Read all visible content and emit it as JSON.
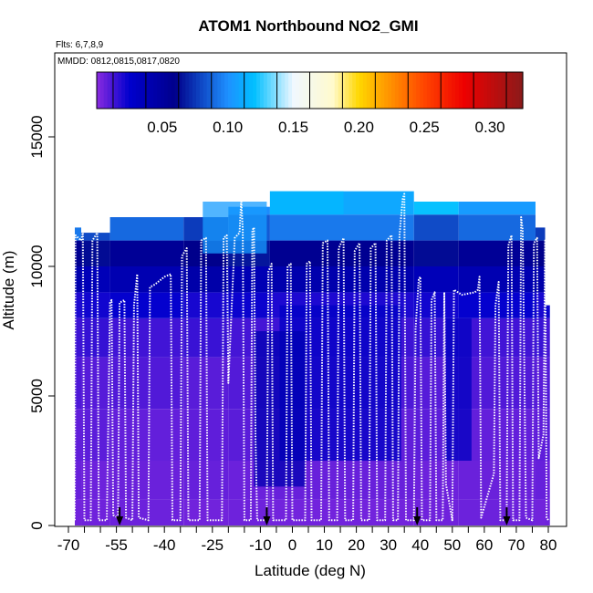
{
  "chart_data": {
    "type": "heatmap",
    "title": "ATOM1 Northbound NO2_GMI",
    "xlabel": "Latitude (deg N)",
    "ylabel": "Altitude (m)",
    "xlim": [
      -70,
      82
    ],
    "ylim": [
      0,
      17500
    ],
    "x_ticks": [
      {
        "value": -70,
        "label": "-70"
      },
      {
        "value": -55,
        "label": "-55"
      },
      {
        "value": -40,
        "label": "-40"
      },
      {
        "value": -25,
        "label": "-25"
      },
      {
        "value": -10,
        "label": "-10"
      },
      {
        "value": 0,
        "label": "0"
      },
      {
        "value": 10,
        "label": "10"
      },
      {
        "value": 20,
        "label": "20"
      },
      {
        "value": 30,
        "label": "30"
      },
      {
        "value": 40,
        "label": "40"
      },
      {
        "value": 50,
        "label": "50"
      },
      {
        "value": 60,
        "label": "60"
      },
      {
        "value": 70,
        "label": "70"
      },
      {
        "value": 80,
        "label": "80"
      }
    ],
    "x_minor_ticks": [
      -65,
      -60,
      -50,
      -45,
      -35,
      -30,
      -20,
      -15,
      -5,
      5,
      15,
      25,
      35,
      45,
      55,
      65,
      75
    ],
    "y_ticks": [
      {
        "value": 0,
        "label": "0"
      },
      {
        "value": 5000,
        "label": "5000"
      },
      {
        "value": 10000,
        "label": "10000"
      },
      {
        "value": 15000,
        "label": "15000"
      }
    ],
    "colorbar": {
      "range": [
        0.0,
        0.325
      ],
      "ticks": [
        {
          "value": 0.05,
          "label": "0.05"
        },
        {
          "value": 0.1,
          "label": "0.10"
        },
        {
          "value": 0.15,
          "label": "0.15"
        },
        {
          "value": 0.2,
          "label": "0.20"
        },
        {
          "value": 0.25,
          "label": "0.25"
        },
        {
          "value": 0.3,
          "label": "0.30"
        }
      ],
      "separators": [
        0.0125,
        0.0375,
        0.0625,
        0.0875,
        0.1125,
        0.1375,
        0.1625,
        0.1875,
        0.2125,
        0.2375,
        0.2625,
        0.2875,
        0.3125
      ],
      "stops": [
        {
          "v": 0.0,
          "c": "#8b2be0"
        },
        {
          "v": 0.025,
          "c": "#0000cd"
        },
        {
          "v": 0.06,
          "c": "#00008b"
        },
        {
          "v": 0.1,
          "c": "#1e90ff"
        },
        {
          "v": 0.12,
          "c": "#00bfff"
        },
        {
          "v": 0.15,
          "c": "#f0f8ff"
        },
        {
          "v": 0.18,
          "c": "#fffacd"
        },
        {
          "v": 0.2,
          "c": "#ffd700"
        },
        {
          "v": 0.25,
          "c": "#ff4500"
        },
        {
          "v": 0.28,
          "c": "#ee0000"
        },
        {
          "v": 0.325,
          "c": "#8b1a1a"
        }
      ]
    },
    "notes": {
      "flights": "Flts: 6,7,8,9",
      "dates": "MMDD: 0812,0815,0817,0820"
    },
    "curtain": {
      "segments": [
        {
          "x0": -68,
          "x1": -66,
          "top": 11500
        },
        {
          "x0": -66,
          "x1": -57,
          "top": 11300
        },
        {
          "x0": -57,
          "x1": -34,
          "top": 11900
        },
        {
          "x0": -34,
          "x1": -20,
          "top": 11900
        },
        {
          "x0": -20,
          "x1": -7,
          "top": 12300
        },
        {
          "x0": -7,
          "x1": 38,
          "top": 12900
        },
        {
          "x0": 38,
          "x1": 52,
          "top": 12500
        },
        {
          "x0": 52,
          "x1": 76,
          "top": 12500
        },
        {
          "x0": 76,
          "x1": 79,
          "top": 11500
        },
        {
          "x0": 79,
          "x1": 80.5,
          "top": 8500
        }
      ],
      "layers": [
        {
          "z0": 0,
          "z1": 1000,
          "value": 0.005
        },
        {
          "z0": 1000,
          "z1": 2500,
          "value": 0.006
        },
        {
          "z0": 2500,
          "z1": 4500,
          "value": 0.008
        },
        {
          "z0": 4500,
          "z1": 6500,
          "value": 0.01
        },
        {
          "z0": 6500,
          "z1": 8000,
          "value": 0.014
        },
        {
          "z0": 8000,
          "z1": 9000,
          "value": 0.022
        },
        {
          "z0": 9000,
          "z1": 10000,
          "value": 0.04
        },
        {
          "z0": 10000,
          "z1": 11000,
          "value": 0.06
        },
        {
          "z0": 11000,
          "z1": 12000,
          "value": 0.085
        },
        {
          "z0": 12000,
          "z1": 13000,
          "value": 0.11
        }
      ],
      "high_blobs": [
        {
          "x0": -4,
          "x1": 34,
          "z0": 2500,
          "z1": 8500,
          "value": 0.03
        },
        {
          "x0": -12,
          "x1": 4,
          "z0": 1500,
          "z1": 7500,
          "value": 0.04
        },
        {
          "x0": 48,
          "x1": 56,
          "z0": 2500,
          "z1": 8000,
          "value": 0.032
        },
        {
          "x0": -28,
          "x1": -8,
          "z0": 10500,
          "z1": 12500,
          "value": 0.105
        },
        {
          "x0": -7,
          "x1": 16,
          "z0": 12000,
          "z1": 12900,
          "value": 0.118
        }
      ]
    },
    "flight_track": [
      [
        -68,
        200
      ],
      [
        -67.8,
        11200
      ],
      [
        -66,
        11000
      ],
      [
        -65.5,
        11300
      ],
      [
        -65,
        200
      ],
      [
        -63,
        200
      ],
      [
        -62.5,
        11000
      ],
      [
        -61,
        11300
      ],
      [
        -60.5,
        200
      ],
      [
        -58,
        200
      ],
      [
        -57,
        8600
      ],
      [
        -56.5,
        8700
      ],
      [
        -56,
        400
      ],
      [
        -54.5,
        300
      ],
      [
        -54,
        8600
      ],
      [
        -52.5,
        8700
      ],
      [
        -52,
        300
      ],
      [
        -50,
        200
      ],
      [
        -49.5,
        8500
      ],
      [
        -48.5,
        9700
      ],
      [
        -48,
        300
      ],
      [
        -45,
        200
      ],
      [
        -44.5,
        9200
      ],
      [
        -43,
        9300
      ],
      [
        -40,
        9600
      ],
      [
        -38,
        9700
      ],
      [
        -37.5,
        200
      ],
      [
        -35,
        200
      ],
      [
        -34.5,
        10400
      ],
      [
        -33,
        10700
      ],
      [
        -32.5,
        200
      ],
      [
        -29,
        200
      ],
      [
        -28.5,
        11000
      ],
      [
        -27,
        11100
      ],
      [
        -26.5,
        200
      ],
      [
        -22,
        200
      ],
      [
        -21.5,
        11100
      ],
      [
        -20.5,
        11200
      ],
      [
        -20,
        5500
      ],
      [
        -18,
        11100
      ],
      [
        -16.5,
        11300
      ],
      [
        -16,
        12600
      ],
      [
        -15.5,
        11400
      ],
      [
        -15,
        200
      ],
      [
        -13,
        200
      ],
      [
        -12.5,
        11400
      ],
      [
        -12,
        11500
      ],
      [
        -11.5,
        3300
      ],
      [
        -11,
        200
      ],
      [
        -8,
        200
      ],
      [
        -7.5,
        9800
      ],
      [
        -6.5,
        10100
      ],
      [
        -6,
        200
      ],
      [
        -2,
        200
      ],
      [
        -1.5,
        10000
      ],
      [
        -0.5,
        10100
      ],
      [
        0,
        200
      ],
      [
        4,
        200
      ],
      [
        4.5,
        10100
      ],
      [
        5.5,
        10200
      ],
      [
        6,
        200
      ],
      [
        9,
        200
      ],
      [
        9.5,
        10900
      ],
      [
        11,
        11000
      ],
      [
        11.5,
        200
      ],
      [
        14,
        200
      ],
      [
        14.5,
        10700
      ],
      [
        16,
        11100
      ],
      [
        16.5,
        200
      ],
      [
        19,
        200
      ],
      [
        19.5,
        10600
      ],
      [
        21,
        10900
      ],
      [
        21.5,
        200
      ],
      [
        24,
        200
      ],
      [
        24.5,
        10700
      ],
      [
        26,
        10900
      ],
      [
        26.5,
        200
      ],
      [
        29,
        200
      ],
      [
        29.5,
        11000
      ],
      [
        31,
        11200
      ],
      [
        31.5,
        200
      ],
      [
        33,
        200
      ],
      [
        33.5,
        11200
      ],
      [
        34.5,
        12600
      ],
      [
        35,
        12800
      ],
      [
        35.5,
        200
      ],
      [
        38,
        200
      ],
      [
        38.5,
        7600
      ],
      [
        39.5,
        9500
      ],
      [
        40,
        9600
      ],
      [
        40.5,
        200
      ],
      [
        43,
        200
      ],
      [
        43.5,
        8700
      ],
      [
        44.5,
        9000
      ],
      [
        45,
        200
      ],
      [
        47,
        200
      ],
      [
        47.5,
        9000
      ],
      [
        48,
        1600
      ],
      [
        50,
        200
      ],
      [
        50.5,
        9100
      ],
      [
        53,
        8900
      ],
      [
        57,
        9000
      ],
      [
        58,
        9100
      ],
      [
        58.5,
        9600
      ],
      [
        59,
        300
      ],
      [
        63,
        2000
      ],
      [
        63.5,
        8500
      ],
      [
        64.5,
        9400
      ],
      [
        65,
        200
      ],
      [
        67,
        200
      ],
      [
        67.5,
        10800
      ],
      [
        68.5,
        11200
      ],
      [
        69,
        200
      ],
      [
        71,
        200
      ],
      [
        71.5,
        11900
      ],
      [
        72,
        11400
      ],
      [
        72.5,
        6200
      ],
      [
        73,
        300
      ],
      [
        75,
        200
      ],
      [
        75.5,
        10900
      ],
      [
        76.5,
        11100
      ],
      [
        77,
        2600
      ],
      [
        78.5,
        3500
      ],
      [
        79,
        11000
      ],
      [
        79.5,
        300
      ],
      [
        80,
        200
      ]
    ],
    "arrows_x": [
      -54,
      -8,
      39,
      67
    ]
  }
}
